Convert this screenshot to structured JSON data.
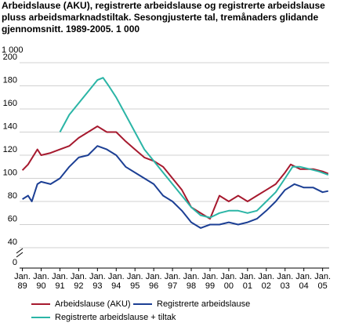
{
  "chart_data": {
    "type": "line",
    "title": "Arbeidslause (AKU), registrerte arbeidslause og registrerte arbeidslause pluss arbeidsmarknadstiltak. Sesongjusterte tal, tremånaders glidande gjennomsnitt. 1989-2005. 1 000",
    "y_unit": "1 000",
    "xlim": [
      1988.85,
      2005.35
    ],
    "xticks": [
      {
        "value": 1989,
        "label": "Jan. 89"
      },
      {
        "value": 1990,
        "label": "Jan. 90"
      },
      {
        "value": 1991,
        "label": "Jan. 91"
      },
      {
        "value": 1992,
        "label": "Jan. 92"
      },
      {
        "value": 1993,
        "label": "Jan. 93"
      },
      {
        "value": 1994,
        "label": "Jan. 94"
      },
      {
        "value": 1995,
        "label": "Jan. 95"
      },
      {
        "value": 1996,
        "label": "Jan. 96"
      },
      {
        "value": 1997,
        "label": "Jan. 97"
      },
      {
        "value": 1998,
        "label": "Jan. 98"
      },
      {
        "value": 1999,
        "label": "Jan. 99"
      },
      {
        "value": 2000,
        "label": "Jan. 00"
      },
      {
        "value": 2001,
        "label": "Jan. 01"
      },
      {
        "value": 2002,
        "label": "Jan. 02"
      },
      {
        "value": 2003,
        "label": "Jan. 03"
      },
      {
        "value": 2004,
        "label": "Jan. 04"
      },
      {
        "value": 2005,
        "label": "Jan. 05"
      }
    ],
    "ylim": [
      0,
      200
    ],
    "axis_break": [
      0,
      40
    ],
    "yticks": [
      0,
      40,
      60,
      80,
      100,
      120,
      140,
      160,
      180,
      200
    ],
    "grid": true,
    "series": [
      {
        "name": "Arbeidslause (AKU)",
        "color": "#a6192e",
        "x": [
          1989,
          1989.3,
          1989.8,
          1990,
          1990.5,
          1991,
          1991.5,
          1992,
          1992.5,
          1993,
          1993.5,
          1994,
          1994.5,
          1995,
          1995.5,
          1996,
          1996.5,
          1997,
          1997.5,
          1998,
          1998.5,
          1999,
          1999.5,
          2000,
          2000.5,
          2001,
          2001.5,
          2002,
          2002.5,
          2003,
          2003.3,
          2003.8,
          2004,
          2004.5,
          2005,
          2005.3
        ],
        "values": [
          107,
          112,
          125,
          120,
          122,
          125,
          128,
          135,
          140,
          145,
          140,
          140,
          132,
          125,
          118,
          115,
          110,
          100,
          90,
          75,
          70,
          65,
          85,
          80,
          85,
          80,
          85,
          90,
          95,
          105,
          112,
          108,
          108,
          108,
          106,
          104
        ]
      },
      {
        "name": "Registrerte arbeidslause",
        "color": "#1c3f94",
        "x": [
          1989,
          1989.3,
          1989.5,
          1989.8,
          1990,
          1990.5,
          1991,
          1991.5,
          1992,
          1992.5,
          1993,
          1993.5,
          1994,
          1994.5,
          1995,
          1995.5,
          1996,
          1996.5,
          1997,
          1997.5,
          1998,
          1998.5,
          1999,
          1999.5,
          2000,
          2000.5,
          2001,
          2001.5,
          2002,
          2002.5,
          2003,
          2003.5,
          2004,
          2004.5,
          2005,
          2005.3
        ],
        "values": [
          82,
          85,
          80,
          95,
          97,
          95,
          100,
          110,
          118,
          120,
          128,
          125,
          120,
          110,
          105,
          100,
          95,
          85,
          80,
          72,
          62,
          57,
          60,
          60,
          62,
          60,
          62,
          65,
          72,
          80,
          90,
          95,
          92,
          92,
          88,
          89
        ]
      },
      {
        "name": "Registrerte arbeidslause + tiltak",
        "color": "#2bb5a6",
        "x": [
          1991,
          1991.5,
          1992,
          1992.5,
          1993,
          1993.3,
          1993.6,
          1994,
          1994.5,
          1995,
          1995.5,
          1996,
          1996.5,
          1997,
          1997.5,
          1998,
          1998.5,
          1999,
          1999.5,
          2000,
          2000.5,
          2001,
          2001.5,
          2002,
          2002.5,
          2003,
          2003.4,
          2003.8,
          2004.3,
          2004.8,
          2005.3
        ],
        "values": [
          140,
          155,
          165,
          175,
          185,
          187,
          180,
          170,
          155,
          140,
          125,
          115,
          105,
          95,
          85,
          75,
          68,
          66,
          70,
          72,
          72,
          70,
          72,
          80,
          88,
          100,
          110,
          110,
          108,
          106,
          103
        ]
      }
    ]
  }
}
